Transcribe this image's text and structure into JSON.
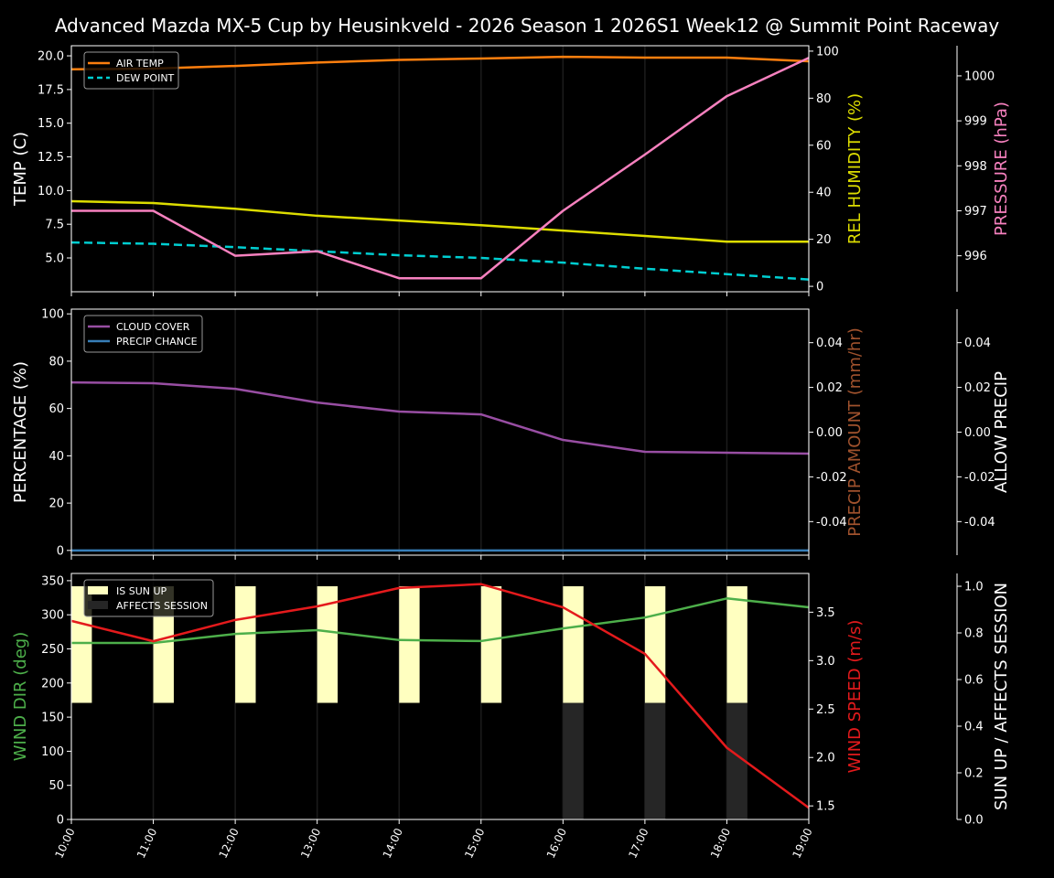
{
  "chart_data": [
    {
      "type": "line",
      "title": "Advanced Mazda MX-5 Cup by Heusinkveld - 2026 Season 1 2026S1 Week12 @ Summit Point Raceway",
      "x": [
        "10:00",
        "11:00",
        "12:00",
        "13:00",
        "14:00",
        "15:00",
        "16:00",
        "17:00",
        "18:00",
        "19:00"
      ],
      "grid": "vertical",
      "legend": "top-left",
      "axes": [
        {
          "side": "left",
          "label": "TEMP (C)",
          "color": "#ffffff",
          "ylim": [
            2.49,
            20.75
          ],
          "ticks": [
            5.0,
            7.5,
            10.0,
            12.5,
            15.0,
            17.5,
            20.0
          ],
          "tick_fmt": 1
        },
        {
          "side": "right",
          "label": "REL HUMIDITY (%)",
          "color": "#dddd00",
          "ylim": [
            -2.3,
            102.3
          ],
          "ticks": [
            0,
            20,
            40,
            60,
            80,
            100
          ],
          "tick_fmt": 0
        },
        {
          "side": "right2",
          "label": "PRESSURE (hPa)",
          "color": "#f781bf",
          "ylim": [
            995.2,
            1000.67
          ],
          "ticks": [
            996,
            997,
            998,
            999,
            1000
          ],
          "tick_fmt": 0
        }
      ],
      "series": [
        {
          "name": "AIR TEMP",
          "axis": 0,
          "color": "#ff7f0e",
          "dash": false,
          "legend": true,
          "values": [
            19.0,
            19.05,
            19.25,
            19.5,
            19.7,
            19.8,
            19.93,
            19.87,
            19.87,
            19.6
          ]
        },
        {
          "name": "DEW POINT",
          "axis": 0,
          "color": "#00ced1",
          "dash": true,
          "legend": true,
          "values": [
            6.15,
            6.05,
            5.8,
            5.5,
            5.2,
            5.0,
            4.65,
            4.2,
            3.8,
            3.4
          ]
        },
        {
          "axis": 1,
          "color": "#dddd00",
          "dash": false,
          "legend": false,
          "values": [
            36.2,
            35.4,
            33.0,
            30.0,
            28.0,
            26.0,
            23.7,
            21.4,
            19.0,
            19.0
          ]
        },
        {
          "axis": 2,
          "color": "#f781bf",
          "dash": false,
          "legend": false,
          "values": [
            997.0,
            997.0,
            996.0,
            996.1,
            995.5,
            995.5,
            997.0,
            998.25,
            999.55,
            1000.4
          ]
        }
      ]
    },
    {
      "type": "line",
      "x": [
        "10:00",
        "11:00",
        "12:00",
        "13:00",
        "14:00",
        "15:00",
        "16:00",
        "17:00",
        "18:00",
        "19:00"
      ],
      "grid": "vertical",
      "legend": "top-left",
      "axes": [
        {
          "side": "left",
          "label": "PERCENTAGE (%)",
          "color": "#ffffff",
          "ylim": [
            -2,
            102
          ],
          "ticks": [
            0,
            20,
            40,
            60,
            80,
            100
          ],
          "tick_fmt": 0
        },
        {
          "side": "right",
          "label": "PRECIP AMOUNT (mm/hr)",
          "color": "#a0522d",
          "ylim": [
            -0.055,
            0.055
          ],
          "ticks": [
            -0.04,
            -0.02,
            0.0,
            0.02,
            0.04
          ],
          "tick_fmt": 2
        },
        {
          "side": "right2",
          "label": "ALLOW PRECIP",
          "color": "#ffffff",
          "ylim": [
            -0.055,
            0.055
          ],
          "ticks": [
            -0.04,
            -0.02,
            0.0,
            0.02,
            0.04
          ],
          "tick_fmt": 2
        }
      ],
      "series": [
        {
          "name": "CLOUD COVER",
          "axis": 0,
          "color": "#984ea3",
          "dash": false,
          "legend": true,
          "values": [
            71.0,
            70.7,
            68.3,
            62.5,
            58.7,
            57.5,
            46.7,
            41.7,
            41.3,
            40.9
          ]
        },
        {
          "name": "PRECIP CHANCE",
          "axis": 0,
          "color": "#377eb8",
          "dash": false,
          "legend": true,
          "values": [
            0,
            0,
            0,
            0,
            0,
            0,
            0,
            0,
            0,
            0
          ]
        }
      ]
    },
    {
      "type": "line",
      "x": [
        "10:00",
        "11:00",
        "12:00",
        "13:00",
        "14:00",
        "15:00",
        "16:00",
        "17:00",
        "18:00",
        "19:00"
      ],
      "grid": "vertical",
      "legend": "top-left",
      "axes": [
        {
          "side": "left",
          "label": "WIND DIR (deg)",
          "color": "#4daf4a",
          "ylim": [
            0,
            360.6
          ],
          "ticks": [
            0,
            50,
            100,
            150,
            200,
            250,
            300,
            350
          ],
          "tick_fmt": 0
        },
        {
          "side": "right",
          "label": "WIND SPEED (m/s)",
          "color": "#e41a1c",
          "ylim": [
            1.36,
            3.9
          ],
          "ticks": [
            1.5,
            2.0,
            2.5,
            3.0,
            3.5
          ],
          "tick_fmt": 1
        },
        {
          "side": "right2",
          "label": "SUN UP / AFFECTS SESSION",
          "color": "#ffffff",
          "ylim": [
            0,
            1.055
          ],
          "ticks": [
            0.0,
            0.2,
            0.4,
            0.6,
            0.8,
            1.0
          ],
          "tick_fmt": 1
        }
      ],
      "bars": [
        {
          "name": "IS SUN UP",
          "color": "#ffffc0",
          "from": 0.5,
          "values": [
            1,
            1,
            1,
            1,
            1,
            1,
            1,
            1,
            1
          ]
        },
        {
          "name": "AFFECTS SESSION",
          "color": "#262626",
          "from": 0,
          "values": [
            0,
            0,
            0,
            0,
            0,
            0,
            0.5,
            0.5,
            0.5
          ]
        }
      ],
      "series": [
        {
          "axis": 0,
          "color": "#4daf4a",
          "dash": false,
          "legend": false,
          "values": [
            258.7,
            258.7,
            272,
            277.5,
            263,
            261.5,
            280,
            296,
            324,
            311
          ]
        },
        {
          "axis": 1,
          "color": "#e41a1c",
          "dash": false,
          "legend": false,
          "values": [
            3.41,
            3.2,
            3.42,
            3.56,
            3.75,
            3.79,
            3.55,
            3.07,
            2.1,
            1.48
          ]
        }
      ]
    }
  ]
}
